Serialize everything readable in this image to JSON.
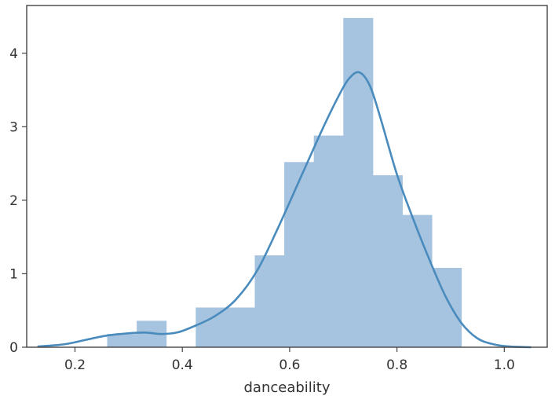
{
  "chart_data": {
    "type": "histogram",
    "xlabel": "danceability",
    "ylabel": "",
    "title": "",
    "xlim": [
      0.11,
      1.08
    ],
    "ylim": [
      0,
      4.65
    ],
    "xticks": [
      0.2,
      0.4,
      0.6,
      0.8,
      1.0
    ],
    "xtick_labels": [
      "0.2",
      "0.4",
      "0.6",
      "0.8",
      "1.0"
    ],
    "yticks": [
      0,
      1,
      2,
      3,
      4
    ],
    "ytick_labels": [
      "0",
      "1",
      "2",
      "3",
      "4"
    ],
    "grid": false,
    "bar_color": "#a6c4df",
    "kde_color": "#4a8bbd",
    "bins": [
      {
        "x0": 0.26,
        "x1": 0.315,
        "value": 0.18
      },
      {
        "x0": 0.315,
        "x1": 0.37,
        "value": 0.36
      },
      {
        "x0": 0.37,
        "x1": 0.425,
        "value": 0.0
      },
      {
        "x0": 0.425,
        "x1": 0.48,
        "value": 0.54
      },
      {
        "x0": 0.48,
        "x1": 0.535,
        "value": 0.54
      },
      {
        "x0": 0.535,
        "x1": 0.59,
        "value": 1.25
      },
      {
        "x0": 0.59,
        "x1": 0.645,
        "value": 2.52
      },
      {
        "x0": 0.645,
        "x1": 0.7,
        "value": 2.88
      },
      {
        "x0": 0.7,
        "x1": 0.755,
        "value": 4.48
      },
      {
        "x0": 0.755,
        "x1": 0.81,
        "value": 2.34
      },
      {
        "x0": 0.81,
        "x1": 0.865,
        "value": 1.8
      },
      {
        "x0": 0.865,
        "x1": 0.92,
        "value": 1.08
      }
    ],
    "kde": {
      "x": [
        0.13,
        0.18,
        0.22,
        0.26,
        0.3,
        0.33,
        0.36,
        0.39,
        0.42,
        0.46,
        0.5,
        0.54,
        0.58,
        0.62,
        0.66,
        0.69,
        0.71,
        0.73,
        0.75,
        0.77,
        0.8,
        0.83,
        0.86,
        0.89,
        0.92,
        0.95,
        0.98,
        1.01,
        1.05
      ],
      "y": [
        0.01,
        0.04,
        0.1,
        0.16,
        0.19,
        0.2,
        0.18,
        0.2,
        0.28,
        0.42,
        0.65,
        1.05,
        1.65,
        2.3,
        2.95,
        3.4,
        3.65,
        3.74,
        3.55,
        3.1,
        2.35,
        1.75,
        1.2,
        0.7,
        0.33,
        0.12,
        0.04,
        0.01,
        0.0
      ]
    }
  }
}
